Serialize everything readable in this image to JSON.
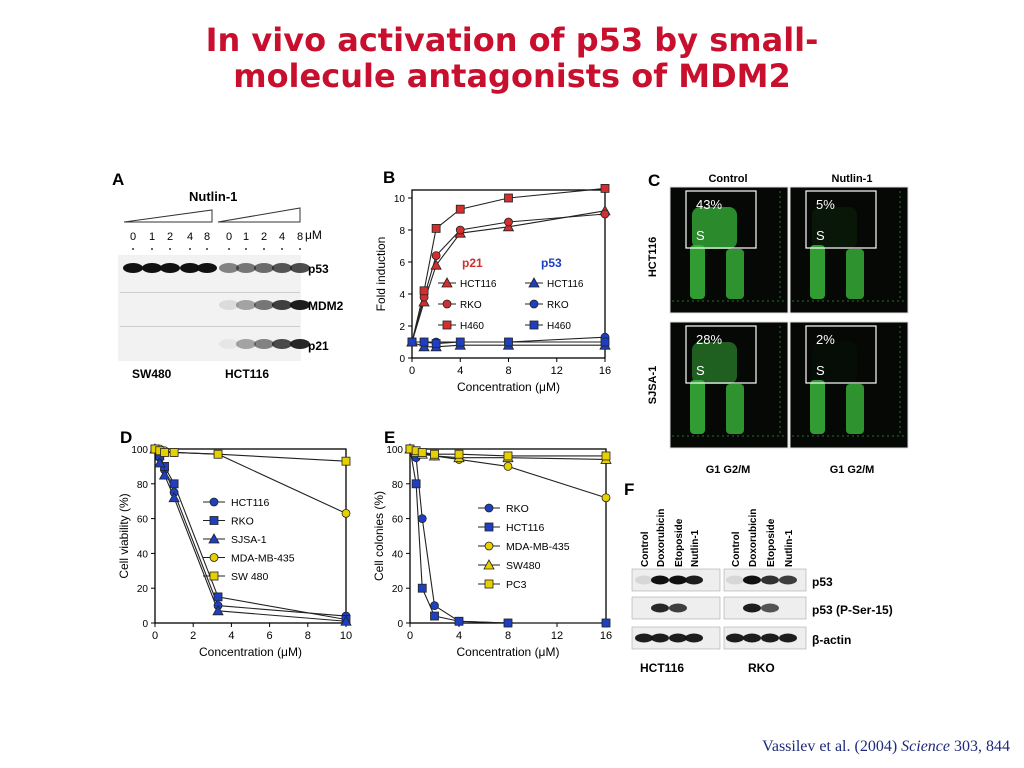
{
  "slide": {
    "title_line1": "In vivo activation of p53 by small-",
    "title_line2": "molecule antagonists of MDM2",
    "citation_authors": "Vassilev et al. (2004)",
    "citation_journal": "Science",
    "citation_volume": "303, 844",
    "title_color": "#c8102e",
    "citation_color": "#1f2a7a"
  },
  "panel_a": {
    "letter": "A",
    "treatment": "Nutlin-1",
    "concentrations": [
      "0",
      "1",
      "2",
      "4",
      "8",
      "0",
      "1",
      "2",
      "4",
      "8"
    ],
    "unit": "μM",
    "bands": [
      "p53",
      "MDM2",
      "p21"
    ],
    "cell_lines": [
      "SW480",
      "HCT116"
    ]
  },
  "panel_c": {
    "letter": "C",
    "columns": [
      "Control",
      "Nutlin-1"
    ],
    "rows": [
      "HCT116",
      "SJSA-1"
    ],
    "s_phase": [
      [
        "43%",
        "5%"
      ],
      [
        "28%",
        "2%"
      ]
    ],
    "gate_label": "S",
    "x_labels": [
      "G1 G2/M",
      "G1 G2/M"
    ]
  },
  "panel_f": {
    "letter": "F",
    "lanes": [
      "Control",
      "Doxorubicin",
      "Etoposide",
      "Nutlin-1",
      "Control",
      "Doxorubicin",
      "Etoposide",
      "Nutlin-1"
    ],
    "bands": [
      "p53",
      "p53 (P-Ser-15)",
      "β-actin"
    ],
    "cell_lines": [
      "HCT116",
      "RKO"
    ]
  },
  "chart_data": [
    {
      "panel": "B",
      "type": "line",
      "xlabel": "Concentration (μM)",
      "ylabel": "Fold induction",
      "xlim": [
        0,
        16
      ],
      "ylim": [
        0,
        10.5
      ],
      "xticks": [
        0,
        4,
        8,
        12,
        16
      ],
      "yticks": [
        0,
        2,
        4,
        6,
        8,
        10
      ],
      "legend_groups": [
        "p21",
        "p53"
      ],
      "legend_group_colors": [
        "#d32f2f",
        "#1e3fbf"
      ],
      "x": [
        0,
        1,
        2,
        4,
        8,
        16
      ],
      "series": [
        {
          "name": "HCT116",
          "group": "p21",
          "marker": "triangle",
          "color": "#d32f2f",
          "values": [
            1.0,
            3.5,
            5.8,
            7.8,
            8.2,
            9.2
          ]
        },
        {
          "name": "RKO",
          "group": "p21",
          "marker": "circle",
          "color": "#d32f2f",
          "values": [
            1.0,
            3.8,
            6.4,
            8.0,
            8.5,
            9.0
          ]
        },
        {
          "name": "H460",
          "group": "p21",
          "marker": "square",
          "color": "#d32f2f",
          "values": [
            1.0,
            4.2,
            8.1,
            9.3,
            10.0,
            10.6
          ]
        },
        {
          "name": "HCT116",
          "group": "p53",
          "marker": "triangle",
          "color": "#1e3fbf",
          "values": [
            1.0,
            0.7,
            0.7,
            0.8,
            0.8,
            0.8
          ]
        },
        {
          "name": "RKO",
          "group": "p53",
          "marker": "circle",
          "color": "#1e3fbf",
          "values": [
            1.0,
            1.0,
            1.0,
            1.0,
            1.0,
            1.3
          ]
        },
        {
          "name": "H460",
          "group": "p53",
          "marker": "square",
          "color": "#1e3fbf",
          "values": [
            1.0,
            1.0,
            0.9,
            1.0,
            1.0,
            1.0
          ]
        }
      ]
    },
    {
      "panel": "D",
      "type": "line",
      "xlabel": "Concentration (μM)",
      "ylabel": "Cell viability (%)",
      "xlim": [
        0,
        10
      ],
      "ylim": [
        0,
        100
      ],
      "xticks": [
        0,
        2,
        4,
        6,
        8,
        10
      ],
      "yticks": [
        0,
        20,
        40,
        60,
        80,
        100
      ],
      "x": [
        0,
        0.25,
        0.5,
        1,
        3.3,
        10
      ],
      "series": [
        {
          "name": "HCT116",
          "marker": "circle",
          "color": "#1e3fbf",
          "values": [
            100,
            95,
            88,
            75,
            10,
            4
          ]
        },
        {
          "name": "RKO",
          "marker": "square",
          "color": "#1e3fbf",
          "values": [
            100,
            96,
            90,
            80,
            15,
            2
          ]
        },
        {
          "name": "SJSA-1",
          "marker": "triangle",
          "color": "#1e3fbf",
          "values": [
            100,
            92,
            85,
            72,
            7,
            1
          ]
        },
        {
          "name": "MDA-MB-435",
          "marker": "circle",
          "color": "#e6d000",
          "values": [
            100,
            100,
            99,
            98,
            97,
            63
          ]
        },
        {
          "name": "SW 480",
          "marker": "square",
          "color": "#e6d000",
          "values": [
            100,
            99,
            98,
            98,
            97,
            93
          ]
        }
      ]
    },
    {
      "panel": "E",
      "type": "line",
      "xlabel": "Concentration (μM)",
      "ylabel": "Cell colonies (%)",
      "xlim": [
        0,
        16
      ],
      "ylim": [
        0,
        100
      ],
      "xticks": [
        0,
        4,
        8,
        12,
        16
      ],
      "yticks": [
        0,
        20,
        40,
        60,
        80,
        100
      ],
      "x": [
        0,
        0.5,
        1,
        2,
        4,
        8,
        16
      ],
      "series": [
        {
          "name": "RKO",
          "marker": "circle",
          "color": "#1e3fbf",
          "values": [
            100,
            95,
            60,
            10,
            1,
            0,
            0
          ]
        },
        {
          "name": "HCT116",
          "marker": "square",
          "color": "#1e3fbf",
          "values": [
            100,
            80,
            20,
            4,
            1,
            0,
            0
          ]
        },
        {
          "name": "MDA-MB-435",
          "marker": "circle",
          "color": "#e6d000",
          "values": [
            100,
            99,
            98,
            96,
            94,
            90,
            72
          ]
        },
        {
          "name": "SW480",
          "marker": "triangle",
          "color": "#e6d000",
          "values": [
            100,
            98,
            97,
            96,
            95,
            95,
            94
          ]
        },
        {
          "name": "PC3",
          "marker": "square",
          "color": "#e6d000",
          "values": [
            100,
            99,
            98,
            97,
            97,
            96,
            96
          ]
        }
      ]
    }
  ]
}
